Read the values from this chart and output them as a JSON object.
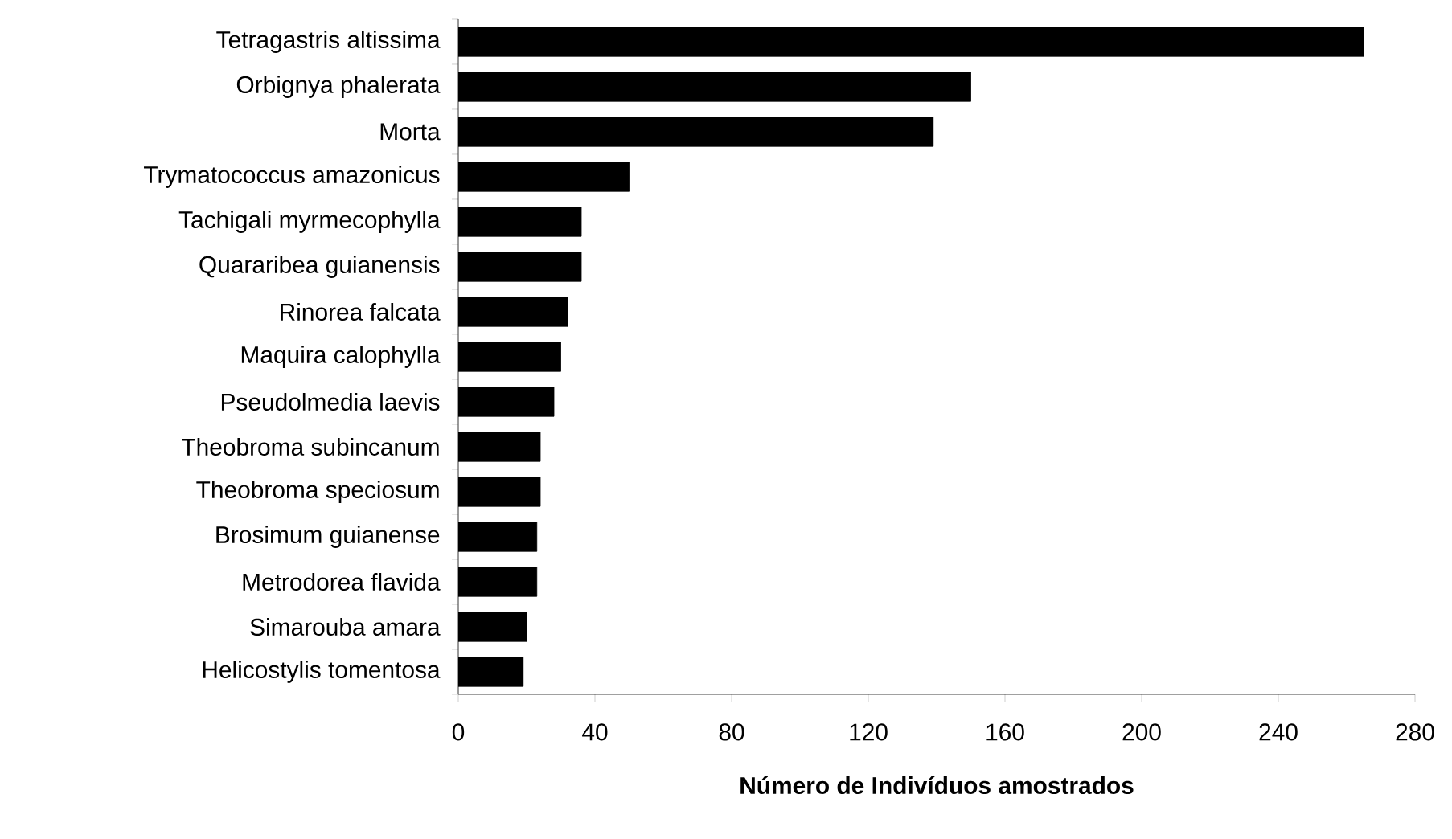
{
  "chart_data": {
    "type": "bar",
    "orientation": "horizontal",
    "xlabel": "**Número de Indivíduos amostrados**",
    "categories": [
      "Tetragastris altissima",
      "Orbignya phalerata",
      "Morta",
      "Trymatococcus amazonicus",
      "Tachigali myrmecophylla",
      "Quararibea guianensis",
      "Rinorea falcata",
      "Maquira calophylla",
      "Pseudolmedia laevis",
      "Theobroma subincanum",
      "Theobroma speciosum",
      "Brosimum guianense",
      "Metrodorea flavida",
      "Simarouba amara",
      "Helicostylis tomentosa"
    ],
    "values": [
      265,
      150,
      139,
      50,
      36,
      36,
      32,
      30,
      28,
      24,
      24,
      23,
      23,
      20,
      19
    ],
    "color": "#000000",
    "xlim": [
      0,
      280
    ],
    "xticks": [
      0,
      40,
      80,
      120,
      160,
      200,
      240,
      280
    ],
    "grid": false
  }
}
